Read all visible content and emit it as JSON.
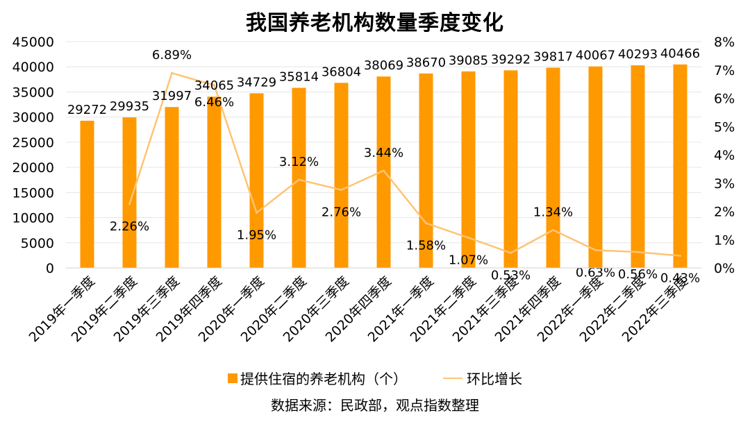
{
  "chart_data": {
    "type": "bar",
    "title": "我国养老机构数量季度变化",
    "categories": [
      "2019年一季度",
      "2019年二季度",
      "2019年三季度",
      "2019年四季度",
      "2020年一季度",
      "2020年二季度",
      "2020年三季度",
      "2020年四季度",
      "2021年一季度",
      "2021年二季度",
      "2021年三季度",
      "2021年四季度",
      "2022年一季度",
      "2022年二季度",
      "2022年三季度"
    ],
    "series": [
      {
        "name": "提供住宿的养老机构（个）",
        "type": "bar",
        "axis": "left",
        "color": "#FF9900",
        "values": [
          29272,
          29935,
          31997,
          34065,
          34729,
          35814,
          36804,
          38069,
          38670,
          39085,
          39292,
          39817,
          40067,
          40293,
          40466
        ],
        "labels": [
          "29272",
          "29935",
          "31997",
          "34065",
          "34729",
          "35814",
          "36804",
          "38069",
          "38670",
          "39085",
          "39292",
          "39817",
          "40067",
          "40293",
          "40466"
        ]
      },
      {
        "name": "环比增长",
        "type": "line",
        "axis": "right",
        "color": "#FFC374",
        "values": [
          null,
          2.26,
          6.89,
          6.46,
          1.95,
          3.12,
          2.76,
          3.44,
          1.58,
          1.07,
          0.53,
          1.34,
          0.63,
          0.56,
          0.43
        ],
        "labels": [
          "",
          "2.26%",
          "6.89%",
          "6.46%",
          "1.95%",
          "3.12%",
          "2.76%",
          "3.44%",
          "1.58%",
          "1.07%",
          "0.53%",
          "1.34%",
          "0.63%",
          "0.56%",
          "0.43%"
        ]
      }
    ],
    "ylim_left": [
      0,
      45000
    ],
    "yticks_left": [
      "0",
      "5000",
      "10000",
      "15000",
      "20000",
      "25000",
      "30000",
      "35000",
      "40000",
      "45000"
    ],
    "ylim_right": [
      0,
      8
    ],
    "yticks_right": [
      "0%",
      "1%",
      "2%",
      "3%",
      "4%",
      "5%",
      "6%",
      "7%",
      "8%"
    ],
    "grid": true,
    "legend_position": "bottom"
  },
  "source_note": "数据来源：民政部，观点指数整理"
}
